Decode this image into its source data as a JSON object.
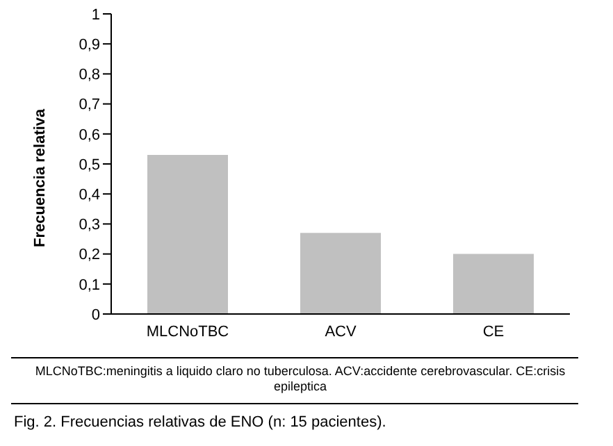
{
  "chart_data": {
    "type": "bar",
    "title": "Fig. 2. Frecuencias relativas de ENO (n: 15 pacientes).",
    "ylabel": "Frecuencia relativa",
    "categories": [
      "MLCNoTBC",
      "ACV",
      "CE"
    ],
    "values": [
      0.53,
      0.27,
      0.2
    ],
    "color": "#c0c0c0",
    "ylim": [
      0,
      1
    ],
    "yticks": [
      0,
      {
        "value": 0.1,
        "label": "0,1"
      },
      {
        "value": 0.2,
        "label": "0,2"
      },
      {
        "value": 0.3,
        "label": "0,3"
      },
      {
        "value": 0.4,
        "label": "0,4"
      },
      {
        "value": 0.5,
        "label": "0,5"
      },
      {
        "value": 0.6,
        "label": "0,6"
      },
      {
        "value": 0.7,
        "label": "0,7"
      },
      {
        "value": 0.8,
        "label": "0,8"
      },
      {
        "value": 0.9,
        "label": "0,9"
      },
      1
    ],
    "annotations": [
      "MLCNoTBC:meningitis a liquido claro no tuberculosa. ACV:accidente cerebrovascular. CE:crisis epileptica"
    ],
    "grid": false,
    "legend": false
  }
}
